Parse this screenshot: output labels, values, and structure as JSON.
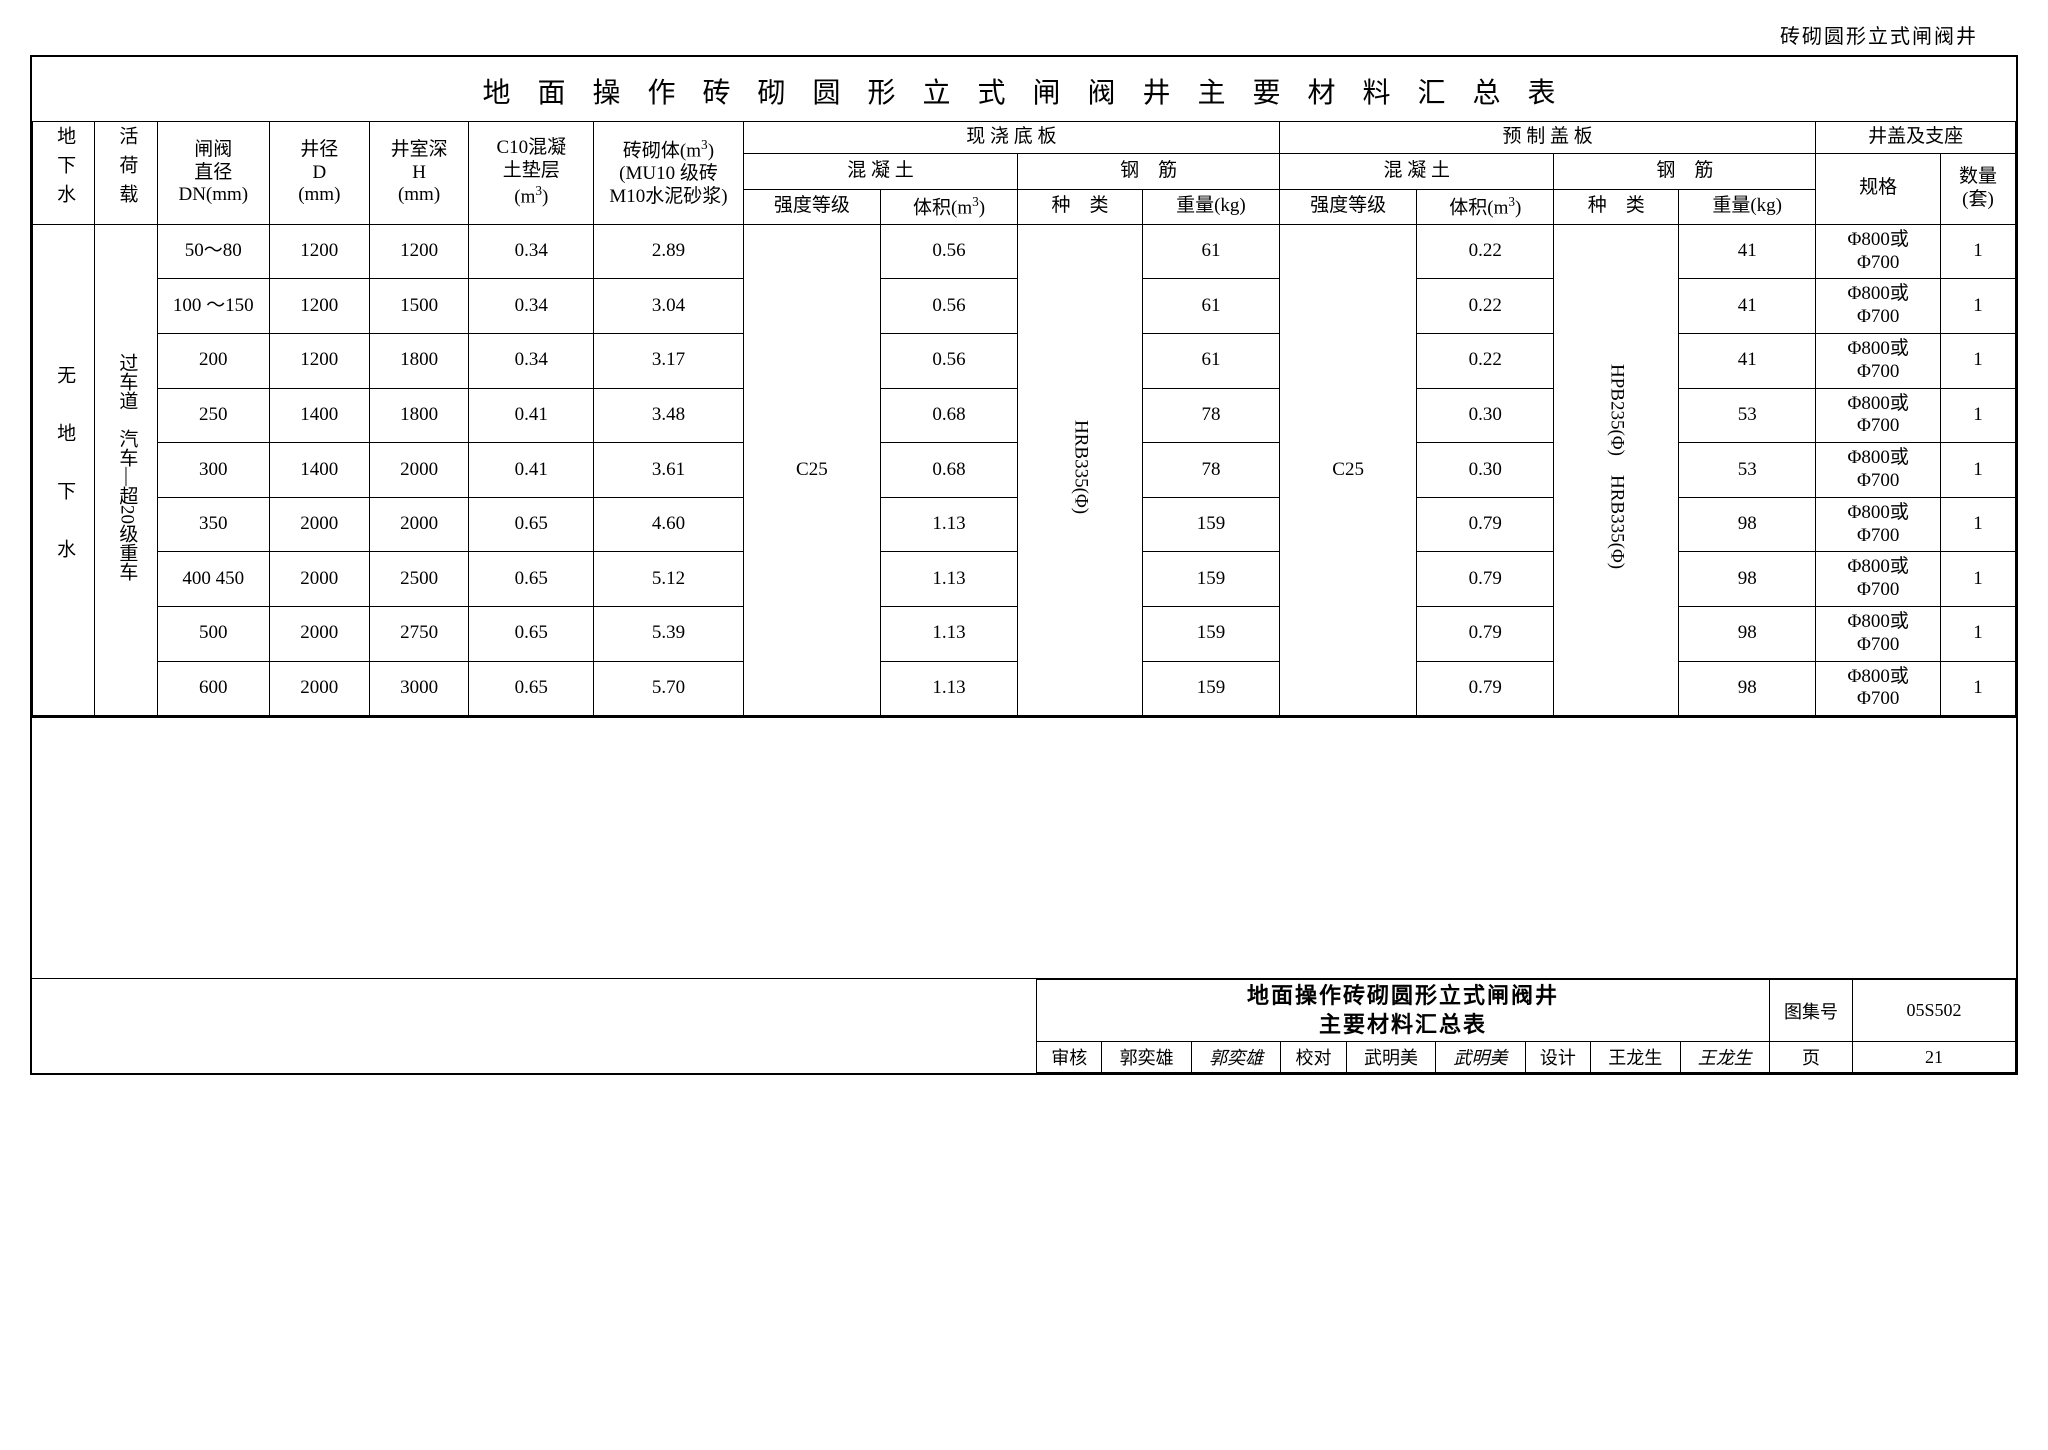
{
  "doc_header_right": "砖砌圆形立式闸阀井",
  "title": "地 面 操 作 砖 砌 圆 形 立 式 闸 阀 井 主 要 材 料 汇 总 表",
  "col_groundwater": "地下水",
  "col_load": "活荷载",
  "col_valve_dia": "闸阀直径 DN(mm)",
  "col_well_dia": "井径 D (mm)",
  "col_depth": "井室深 H (mm)",
  "col_c10": "C10混凝土垫层 (m³)",
  "col_brick": "砖砌体(m³) (MU10 级砖 M10水泥砂浆)",
  "grp_castslab": "现 浇 底 板",
  "grp_precover": "预 制 盖 板",
  "grp_cover_seat": "井盖及支座",
  "sub_concrete": "混 凝 土",
  "sub_rebar": "钢　筋",
  "sub_strength": "强度等级",
  "sub_volume": "体积(m³)",
  "sub_type": "种　类",
  "sub_weight": "重量(kg)",
  "sub_spec": "规格",
  "sub_qty": "数量 (套)",
  "row_gw": "无　地　下　水",
  "row_load": "过车道　汽车—超20级重车",
  "cast_strength": "C25",
  "cast_rebar_type": "HRB335(Φ)",
  "pre_strength": "C25",
  "pre_rebar_type": "HPB235(Φ)　HRB335(Φ)",
  "rows": [
    {
      "dn": "50～80",
      "D": "1200",
      "H": "1200",
      "c10": "0.34",
      "brick": "2.89",
      "cvol": "0.56",
      "cw": "61",
      "pvol": "0.22",
      "pw": "41",
      "spec": "Φ800或Φ700",
      "qty": "1"
    },
    {
      "dn": "100 ～150",
      "D": "1200",
      "H": "1500",
      "c10": "0.34",
      "brick": "3.04",
      "cvol": "0.56",
      "cw": "61",
      "pvol": "0.22",
      "pw": "41",
      "spec": "Φ800或Φ700",
      "qty": "1"
    },
    {
      "dn": "200",
      "D": "1200",
      "H": "1800",
      "c10": "0.34",
      "brick": "3.17",
      "cvol": "0.56",
      "cw": "61",
      "pvol": "0.22",
      "pw": "41",
      "spec": "Φ800或Φ700",
      "qty": "1"
    },
    {
      "dn": "250",
      "D": "1400",
      "H": "1800",
      "c10": "0.41",
      "brick": "3.48",
      "cvol": "0.68",
      "cw": "78",
      "pvol": "0.30",
      "pw": "53",
      "spec": "Φ800或Φ700",
      "qty": "1"
    },
    {
      "dn": "300",
      "D": "1400",
      "H": "2000",
      "c10": "0.41",
      "brick": "3.61",
      "cvol": "0.68",
      "cw": "78",
      "pvol": "0.30",
      "pw": "53",
      "spec": "Φ800或Φ700",
      "qty": "1"
    },
    {
      "dn": "350",
      "D": "2000",
      "H": "2000",
      "c10": "0.65",
      "brick": "4.60",
      "cvol": "1.13",
      "cw": "159",
      "pvol": "0.79",
      "pw": "98",
      "spec": "Φ800或Φ700",
      "qty": "1"
    },
    {
      "dn": "400 450",
      "D": "2000",
      "H": "2500",
      "c10": "0.65",
      "brick": "5.12",
      "cvol": "1.13",
      "cw": "159",
      "pvol": "0.79",
      "pw": "98",
      "spec": "Φ800或Φ700",
      "qty": "1"
    },
    {
      "dn": "500",
      "D": "2000",
      "H": "2750",
      "c10": "0.65",
      "brick": "5.39",
      "cvol": "1.13",
      "cw": "159",
      "pvol": "0.79",
      "pw": "98",
      "spec": "Φ800或Φ700",
      "qty": "1"
    },
    {
      "dn": "600",
      "D": "2000",
      "H": "3000",
      "c10": "0.65",
      "brick": "5.70",
      "cvol": "1.13",
      "cw": "159",
      "pvol": "0.79",
      "pw": "98",
      "spec": "Φ800或Φ700",
      "qty": "1"
    }
  ],
  "tb_title_l1": "地面操作砖砌圆形立式闸阀井",
  "tb_title_l2": "主要材料汇总表",
  "tb_drawno_label": "图集号",
  "tb_drawno": "05S502",
  "tb_review": "审核",
  "tb_reviewer": "郭奕雄",
  "tb_reviewer_sig": "郭奕雄",
  "tb_check": "校对",
  "tb_checker": "武明美",
  "tb_checker_sig": "武明美",
  "tb_design": "设计",
  "tb_designer": "王龙生",
  "tb_designer_sig": "王龙生",
  "tb_page_label": "页",
  "tb_page": "21"
}
